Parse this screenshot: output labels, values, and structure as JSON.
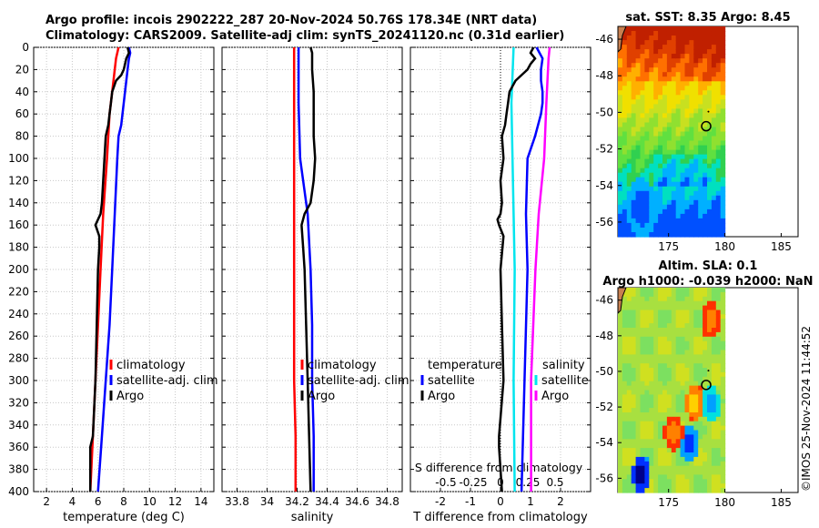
{
  "title": {
    "line1": "Argo profile: incois 2902222_287 20-Nov-2024 50.76S 178.34E (NRT data)",
    "line2": "Climatology: CARS2009. Satellite-adj clim: synTS_20241120.nc (0.31d earlier)"
  },
  "timestamp": "©IMOS 25-Nov-2024 11:44:52",
  "colors": {
    "climatology": "#ff0000",
    "satellite": "#0000ff",
    "argo": "#000000",
    "satellite_s": "#00e5ee",
    "argo_s": "#ff00ff"
  },
  "chart_data": [
    {
      "id": "temperature",
      "type": "line",
      "xlabel": "temperature (deg C)",
      "ylabel": "",
      "xlim": [
        1,
        15
      ],
      "ylim": [
        400,
        0
      ],
      "xticks": [
        "2",
        "4",
        "6",
        "8",
        "10",
        "12",
        "14"
      ],
      "yticks": [
        "0",
        "20",
        "40",
        "60",
        "80",
        "100",
        "120",
        "140",
        "160",
        "180",
        "200",
        "220",
        "240",
        "260",
        "280",
        "300",
        "320",
        "340",
        "360",
        "380",
        "400"
      ],
      "legend": [
        "climatology",
        "satellite-adj. clim",
        "Argo"
      ],
      "series": [
        {
          "name": "climatology",
          "depth": [
            0,
            10,
            20,
            40,
            60,
            80,
            100,
            150,
            200,
            250,
            300,
            350,
            400
          ],
          "values": [
            7.6,
            7.4,
            7.3,
            7.1,
            6.9,
            6.8,
            6.7,
            6.4,
            6.2,
            6.0,
            5.8,
            5.6,
            5.4
          ]
        },
        {
          "name": "satellite-adj. clim",
          "depth": [
            0,
            5,
            10,
            20,
            30,
            40,
            50,
            60,
            70,
            80,
            100,
            150,
            200,
            250,
            300,
            350,
            400
          ],
          "values": [
            8.4,
            8.5,
            8.4,
            8.3,
            8.2,
            8.1,
            8.0,
            7.9,
            7.8,
            7.6,
            7.5,
            7.3,
            7.1,
            6.9,
            6.6,
            6.3,
            6.0
          ]
        },
        {
          "name": "Argo",
          "depth": [
            0,
            5,
            10,
            15,
            20,
            25,
            30,
            40,
            50,
            60,
            70,
            80,
            100,
            120,
            140,
            150,
            160,
            170,
            180,
            200,
            250,
            300,
            350,
            360,
            380,
            400
          ],
          "values": [
            8.3,
            8.4,
            8.2,
            8.1,
            8.0,
            7.8,
            7.4,
            7.1,
            7.0,
            6.9,
            6.8,
            6.6,
            6.5,
            6.4,
            6.3,
            6.2,
            5.8,
            6.1,
            6.1,
            6.0,
            5.9,
            5.8,
            5.6,
            5.4,
            5.4,
            5.4
          ]
        }
      ]
    },
    {
      "id": "salinity",
      "type": "line",
      "xlabel": "salinity",
      "xlim": [
        33.7,
        34.9
      ],
      "ylim": [
        400,
        0
      ],
      "xticks": [
        "33.8",
        "34",
        "34.2",
        "34.4",
        "34.6",
        "34.8"
      ],
      "legend": [
        "climatology",
        "satellite-adj. clim",
        "Argo"
      ],
      "series": [
        {
          "name": "climatology",
          "depth": [
            0,
            50,
            100,
            150,
            200,
            250,
            300,
            350,
            400
          ],
          "values": [
            34.18,
            34.18,
            34.18,
            34.18,
            34.18,
            34.18,
            34.18,
            34.19,
            34.19
          ]
        },
        {
          "name": "satellite-adj. clim",
          "depth": [
            0,
            50,
            100,
            150,
            200,
            250,
            300,
            350,
            400
          ],
          "values": [
            34.21,
            34.21,
            34.22,
            34.27,
            34.29,
            34.3,
            34.3,
            34.31,
            34.31
          ]
        },
        {
          "name": "Argo",
          "depth": [
            0,
            5,
            20,
            40,
            60,
            80,
            100,
            120,
            140,
            150,
            160,
            180,
            200,
            250,
            300,
            350,
            400
          ],
          "values": [
            34.29,
            34.3,
            34.3,
            34.31,
            34.31,
            34.31,
            34.32,
            34.31,
            34.29,
            34.25,
            34.23,
            34.24,
            34.25,
            34.26,
            34.27,
            34.28,
            34.29
          ]
        }
      ]
    },
    {
      "id": "difference",
      "type": "line",
      "xlabel": "T difference from climatology",
      "xlabel_top": "S difference from climatology",
      "xlim": [
        -3,
        3
      ],
      "ylim": [
        400,
        0
      ],
      "xticks": [
        "-2",
        "-1",
        "0",
        "1",
        "2"
      ],
      "xticks_s": [
        "-0.5",
        "-0.25",
        "0",
        "0.25",
        "0.5"
      ],
      "legend_t_title": "temperature",
      "legend_s_title": "salinity",
      "legend_t": [
        "satellite",
        "Argo"
      ],
      "legend_s": [
        "satellite",
        "Argo"
      ],
      "series": [
        {
          "name": "T satellite",
          "depth": [
            0,
            5,
            10,
            20,
            30,
            40,
            50,
            60,
            80,
            100,
            150,
            200,
            300,
            400
          ],
          "values": [
            1.2,
            1.3,
            1.4,
            1.35,
            1.35,
            1.4,
            1.4,
            1.35,
            1.15,
            0.9,
            0.85,
            0.9,
            0.8,
            0.7
          ]
        },
        {
          "name": "T Argo",
          "depth": [
            0,
            5,
            10,
            15,
            20,
            25,
            30,
            40,
            50,
            60,
            70,
            80,
            100,
            120,
            140,
            150,
            155,
            160,
            170,
            200,
            250,
            300,
            350,
            360,
            380,
            400
          ],
          "values": [
            1.1,
            1.0,
            1.15,
            1.0,
            0.9,
            0.7,
            0.5,
            0.3,
            0.25,
            0.2,
            0.15,
            0.05,
            0.1,
            0.0,
            0.05,
            0.0,
            -0.1,
            -0.05,
            0.1,
            0.0,
            0.05,
            0.1,
            -0.05,
            -0.05,
            0.0,
            0.05
          ]
        },
        {
          "name": "S satellite",
          "depth": [
            0,
            50,
            100,
            150,
            200,
            300,
            400
          ],
          "values": [
            0.12,
            0.1,
            0.11,
            0.12,
            0.13,
            0.12,
            0.13
          ]
        },
        {
          "name": "S Argo",
          "depth": [
            0,
            10,
            50,
            100,
            150,
            200,
            250,
            300,
            400
          ],
          "values": [
            0.45,
            0.44,
            0.42,
            0.4,
            0.35,
            0.32,
            0.3,
            0.28,
            0.28
          ]
        }
      ]
    },
    {
      "id": "sst-map",
      "type": "heatmap",
      "title": "sat. SST: 8.35 Argo: 8.45",
      "xticks": [
        "175",
        "180",
        "185"
      ],
      "yticks": [
        "-46",
        "-48",
        "-50",
        "-52",
        "-54",
        "-56"
      ],
      "xlim": [
        170.5,
        186.5
      ],
      "ylim": [
        -56.8,
        -45.3
      ],
      "argo_position": [
        178.34,
        -50.76
      ]
    },
    {
      "id": "sla-map",
      "type": "heatmap",
      "title": "Altim. SLA: 0.1",
      "subtitle": "Argo h1000: -0.039 h2000: NaN",
      "xticks": [
        "175",
        "180",
        "185"
      ],
      "yticks": [
        "-46",
        "-48",
        "-50",
        "-52",
        "-54",
        "-56"
      ],
      "xlim": [
        170.5,
        186.5
      ],
      "ylim": [
        -56.8,
        -45.3
      ],
      "argo_position": [
        178.34,
        -50.76
      ]
    }
  ]
}
